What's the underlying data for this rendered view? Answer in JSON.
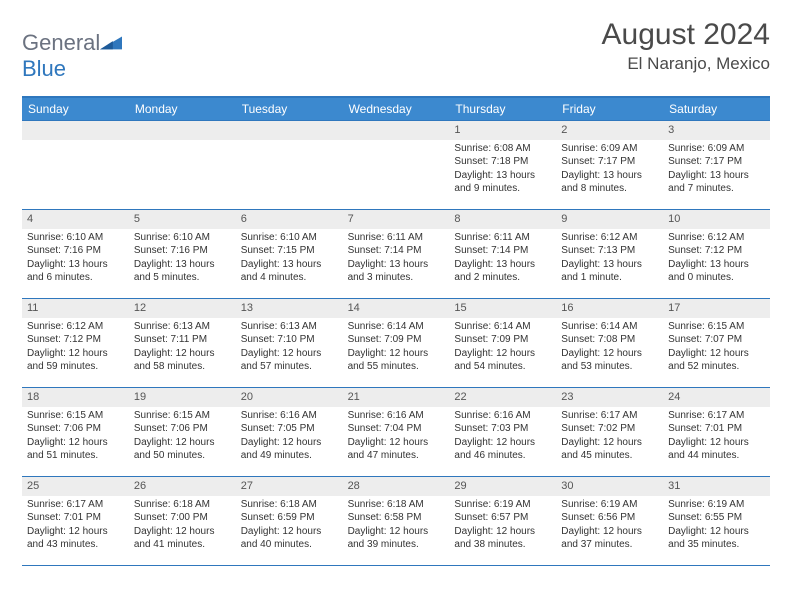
{
  "logo": {
    "word1": "General",
    "word2": "Blue"
  },
  "title": "August 2024",
  "location": "El Naranjo, Mexico",
  "header_bg": "#3c89cf",
  "border_color": "#2f77bd",
  "daynum_bg": "#ededed",
  "text_color": "#333333",
  "weekdays": [
    "Sunday",
    "Monday",
    "Tuesday",
    "Wednesday",
    "Thursday",
    "Friday",
    "Saturday"
  ],
  "weeks": [
    [
      {
        "num": "",
        "sunrise": "",
        "sunset": "",
        "daylight": ""
      },
      {
        "num": "",
        "sunrise": "",
        "sunset": "",
        "daylight": ""
      },
      {
        "num": "",
        "sunrise": "",
        "sunset": "",
        "daylight": ""
      },
      {
        "num": "",
        "sunrise": "",
        "sunset": "",
        "daylight": ""
      },
      {
        "num": "1",
        "sunrise": "Sunrise: 6:08 AM",
        "sunset": "Sunset: 7:18 PM",
        "daylight": "Daylight: 13 hours and 9 minutes."
      },
      {
        "num": "2",
        "sunrise": "Sunrise: 6:09 AM",
        "sunset": "Sunset: 7:17 PM",
        "daylight": "Daylight: 13 hours and 8 minutes."
      },
      {
        "num": "3",
        "sunrise": "Sunrise: 6:09 AM",
        "sunset": "Sunset: 7:17 PM",
        "daylight": "Daylight: 13 hours and 7 minutes."
      }
    ],
    [
      {
        "num": "4",
        "sunrise": "Sunrise: 6:10 AM",
        "sunset": "Sunset: 7:16 PM",
        "daylight": "Daylight: 13 hours and 6 minutes."
      },
      {
        "num": "5",
        "sunrise": "Sunrise: 6:10 AM",
        "sunset": "Sunset: 7:16 PM",
        "daylight": "Daylight: 13 hours and 5 minutes."
      },
      {
        "num": "6",
        "sunrise": "Sunrise: 6:10 AM",
        "sunset": "Sunset: 7:15 PM",
        "daylight": "Daylight: 13 hours and 4 minutes."
      },
      {
        "num": "7",
        "sunrise": "Sunrise: 6:11 AM",
        "sunset": "Sunset: 7:14 PM",
        "daylight": "Daylight: 13 hours and 3 minutes."
      },
      {
        "num": "8",
        "sunrise": "Sunrise: 6:11 AM",
        "sunset": "Sunset: 7:14 PM",
        "daylight": "Daylight: 13 hours and 2 minutes."
      },
      {
        "num": "9",
        "sunrise": "Sunrise: 6:12 AM",
        "sunset": "Sunset: 7:13 PM",
        "daylight": "Daylight: 13 hours and 1 minute."
      },
      {
        "num": "10",
        "sunrise": "Sunrise: 6:12 AM",
        "sunset": "Sunset: 7:12 PM",
        "daylight": "Daylight: 13 hours and 0 minutes."
      }
    ],
    [
      {
        "num": "11",
        "sunrise": "Sunrise: 6:12 AM",
        "sunset": "Sunset: 7:12 PM",
        "daylight": "Daylight: 12 hours and 59 minutes."
      },
      {
        "num": "12",
        "sunrise": "Sunrise: 6:13 AM",
        "sunset": "Sunset: 7:11 PM",
        "daylight": "Daylight: 12 hours and 58 minutes."
      },
      {
        "num": "13",
        "sunrise": "Sunrise: 6:13 AM",
        "sunset": "Sunset: 7:10 PM",
        "daylight": "Daylight: 12 hours and 57 minutes."
      },
      {
        "num": "14",
        "sunrise": "Sunrise: 6:14 AM",
        "sunset": "Sunset: 7:09 PM",
        "daylight": "Daylight: 12 hours and 55 minutes."
      },
      {
        "num": "15",
        "sunrise": "Sunrise: 6:14 AM",
        "sunset": "Sunset: 7:09 PM",
        "daylight": "Daylight: 12 hours and 54 minutes."
      },
      {
        "num": "16",
        "sunrise": "Sunrise: 6:14 AM",
        "sunset": "Sunset: 7:08 PM",
        "daylight": "Daylight: 12 hours and 53 minutes."
      },
      {
        "num": "17",
        "sunrise": "Sunrise: 6:15 AM",
        "sunset": "Sunset: 7:07 PM",
        "daylight": "Daylight: 12 hours and 52 minutes."
      }
    ],
    [
      {
        "num": "18",
        "sunrise": "Sunrise: 6:15 AM",
        "sunset": "Sunset: 7:06 PM",
        "daylight": "Daylight: 12 hours and 51 minutes."
      },
      {
        "num": "19",
        "sunrise": "Sunrise: 6:15 AM",
        "sunset": "Sunset: 7:06 PM",
        "daylight": "Daylight: 12 hours and 50 minutes."
      },
      {
        "num": "20",
        "sunrise": "Sunrise: 6:16 AM",
        "sunset": "Sunset: 7:05 PM",
        "daylight": "Daylight: 12 hours and 49 minutes."
      },
      {
        "num": "21",
        "sunrise": "Sunrise: 6:16 AM",
        "sunset": "Sunset: 7:04 PM",
        "daylight": "Daylight: 12 hours and 47 minutes."
      },
      {
        "num": "22",
        "sunrise": "Sunrise: 6:16 AM",
        "sunset": "Sunset: 7:03 PM",
        "daylight": "Daylight: 12 hours and 46 minutes."
      },
      {
        "num": "23",
        "sunrise": "Sunrise: 6:17 AM",
        "sunset": "Sunset: 7:02 PM",
        "daylight": "Daylight: 12 hours and 45 minutes."
      },
      {
        "num": "24",
        "sunrise": "Sunrise: 6:17 AM",
        "sunset": "Sunset: 7:01 PM",
        "daylight": "Daylight: 12 hours and 44 minutes."
      }
    ],
    [
      {
        "num": "25",
        "sunrise": "Sunrise: 6:17 AM",
        "sunset": "Sunset: 7:01 PM",
        "daylight": "Daylight: 12 hours and 43 minutes."
      },
      {
        "num": "26",
        "sunrise": "Sunrise: 6:18 AM",
        "sunset": "Sunset: 7:00 PM",
        "daylight": "Daylight: 12 hours and 41 minutes."
      },
      {
        "num": "27",
        "sunrise": "Sunrise: 6:18 AM",
        "sunset": "Sunset: 6:59 PM",
        "daylight": "Daylight: 12 hours and 40 minutes."
      },
      {
        "num": "28",
        "sunrise": "Sunrise: 6:18 AM",
        "sunset": "Sunset: 6:58 PM",
        "daylight": "Daylight: 12 hours and 39 minutes."
      },
      {
        "num": "29",
        "sunrise": "Sunrise: 6:19 AM",
        "sunset": "Sunset: 6:57 PM",
        "daylight": "Daylight: 12 hours and 38 minutes."
      },
      {
        "num": "30",
        "sunrise": "Sunrise: 6:19 AM",
        "sunset": "Sunset: 6:56 PM",
        "daylight": "Daylight: 12 hours and 37 minutes."
      },
      {
        "num": "31",
        "sunrise": "Sunrise: 6:19 AM",
        "sunset": "Sunset: 6:55 PM",
        "daylight": "Daylight: 12 hours and 35 minutes."
      }
    ]
  ]
}
